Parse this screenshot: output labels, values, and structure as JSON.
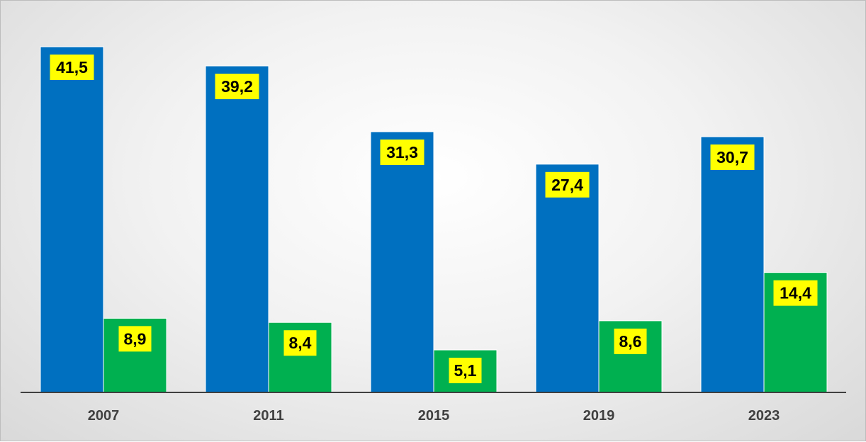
{
  "chart_data": {
    "type": "bar",
    "categories": [
      "2007",
      "2011",
      "2015",
      "2019",
      "2023"
    ],
    "series": [
      {
        "values": [
          41.5,
          39.2,
          31.3,
          27.4,
          30.7
        ],
        "labels": [
          "41,5",
          "39,2",
          "31,3",
          "27,4",
          "30,7"
        ],
        "color": "#0070C0"
      },
      {
        "values": [
          8.9,
          8.4,
          5.1,
          8.6,
          14.4
        ],
        "labels": [
          "8,9",
          "8,4",
          "5,1",
          "8,6",
          "14,4"
        ],
        "color": "#00B050"
      }
    ],
    "data_label_background": "#FFFF00",
    "title": "",
    "xlabel": "",
    "ylabel": "",
    "ylim": [
      0,
      45
    ],
    "grid": false,
    "legend": "none"
  }
}
